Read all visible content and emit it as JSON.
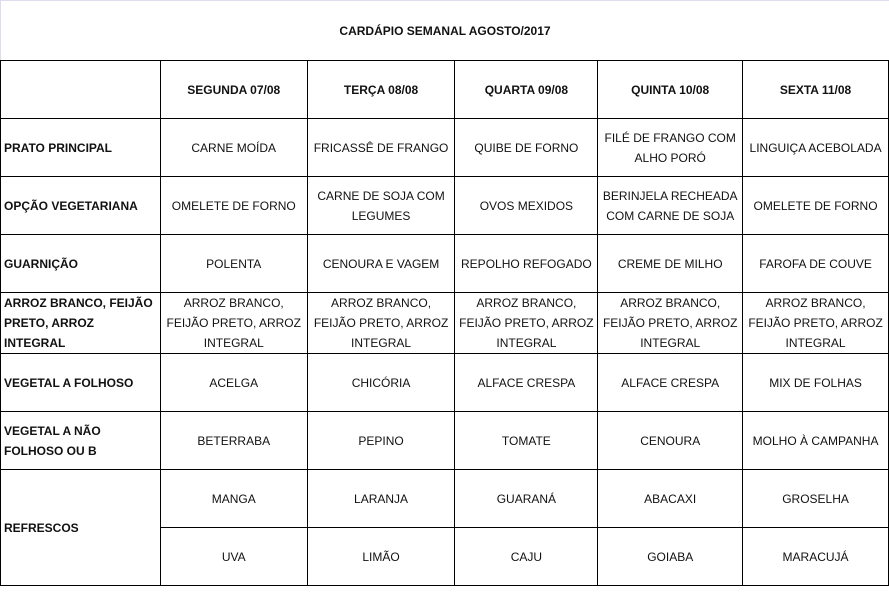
{
  "title": "CARDÁPIO SEMANAL AGOSTO/2017",
  "days": [
    "SEGUNDA   07/08",
    "TERÇA 08/08",
    "QUARTA 09/08",
    "QUINTA 10/08",
    "SEXTA 11/08"
  ],
  "rows": [
    {
      "label": "PRATO PRINCIPAL",
      "cells": [
        "CARNE MOÍDA",
        "FRICASSÊ DE FRANGO",
        "QUIBE DE FORNO",
        "FILÉ DE FRANGO COM ALHO PORÓ",
        "LINGUIÇA ACEBOLADA"
      ]
    },
    {
      "label": "OPÇÃO VEGETARIANA",
      "cells": [
        "OMELETE DE FORNO",
        "CARNE DE SOJA COM LEGUMES",
        "OVOS MEXIDOS",
        "BERINJELA RECHEADA COM CARNE DE SOJA",
        "OMELETE DE FORNO"
      ]
    },
    {
      "label": "GUARNIÇÃO",
      "cells": [
        "POLENTA",
        "CENOURA E VAGEM",
        "REPOLHO REFOGADO",
        "CREME DE MILHO",
        "FAROFA DE COUVE"
      ]
    },
    {
      "label": "ARROZ BRANCO, FEIJÃO PRETO, ARROZ INTEGRAL",
      "cells": [
        "ARROZ BRANCO, FEIJÃO PRETO, ARROZ INTEGRAL",
        "ARROZ BRANCO, FEIJÃO PRETO, ARROZ INTEGRAL",
        "ARROZ BRANCO, FEIJÃO PRETO, ARROZ INTEGRAL",
        "ARROZ BRANCO, FEIJÃO PRETO, ARROZ INTEGRAL",
        "ARROZ BRANCO, FEIJÃO PRETO, ARROZ INTEGRAL"
      ]
    },
    {
      "label": "VEGETAL A FOLHOSO",
      "cells": [
        "ACELGA",
        "CHICÓRIA",
        "ALFACE CRESPA",
        "ALFACE CRESPA",
        "MIX DE FOLHAS"
      ]
    },
    {
      "label": "VEGETAL A NÃO FOLHOSO OU B",
      "cells": [
        "BETERRABA",
        "PEPINO",
        "TOMATE",
        "CENOURA",
        "MOLHO À CAMPANHA"
      ]
    }
  ],
  "refrescos": {
    "label": "REFRESCOS",
    "rows": [
      [
        "MANGA",
        "LARANJA",
        "GUARANÁ",
        "ABACAXI",
        "GROSELHA"
      ],
      [
        "UVA",
        "LIMÃO",
        "CAJU",
        "GOIABA",
        "MARACUJÁ"
      ]
    ]
  }
}
